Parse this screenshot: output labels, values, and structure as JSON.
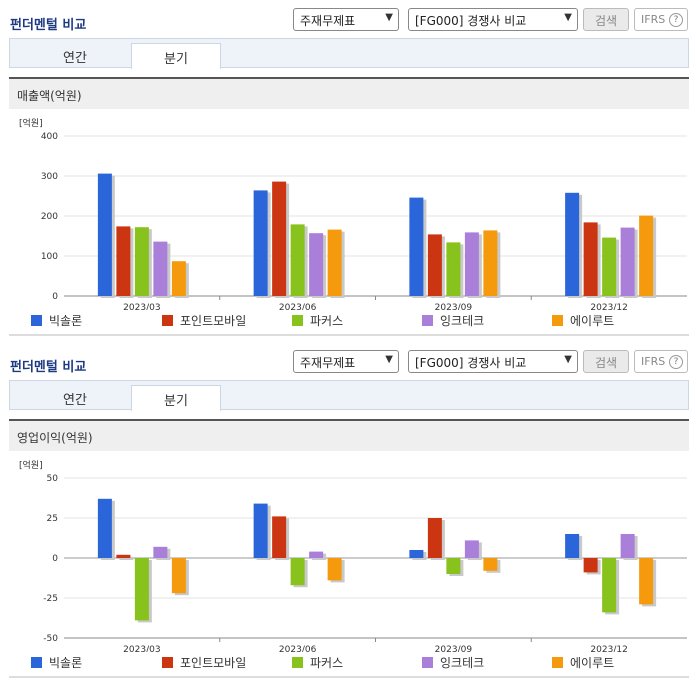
{
  "panels": [
    {
      "header": {
        "title": "펀더멘털 비교",
        "select1": "주재무제표",
        "select2": "[FG000] 경쟁사 비교",
        "search_label": "검색",
        "ifrs_label": "IFRS",
        "help_glyph": "?"
      },
      "tabs": [
        {
          "label": "연간",
          "active": false
        },
        {
          "label": "분기",
          "active": true
        }
      ],
      "section_title": "매출액(억원)",
      "legend": [
        "빅솔론",
        "포인트모바일",
        "파커스",
        "잉크테크",
        "에이루트"
      ]
    },
    {
      "header": {
        "title": "펀더멘털 비교",
        "select1": "주재무제표",
        "select2": "[FG000] 경쟁사 비교",
        "search_label": "검색",
        "ifrs_label": "IFRS",
        "help_glyph": "?"
      },
      "tabs": [
        {
          "label": "연간",
          "active": false
        },
        {
          "label": "분기",
          "active": true
        }
      ],
      "section_title": "영업이익(억원)",
      "legend": [
        "빅솔론",
        "포인트모바일",
        "파커스",
        "잉크테크",
        "에이루트"
      ]
    }
  ],
  "colors": [
    "#2a66d9",
    "#cc3511",
    "#88c21c",
    "#a97fda",
    "#f59a0d"
  ],
  "chart_data": [
    {
      "type": "bar",
      "unit_label": "[억원]",
      "categories": [
        "2023/03",
        "2023/06",
        "2023/09",
        "2023/12"
      ],
      "ylim": [
        0,
        400
      ],
      "yticks": [
        0,
        100,
        200,
        300,
        400
      ],
      "series": [
        {
          "name": "빅솔론",
          "values": [
            306,
            264,
            246,
            258
          ]
        },
        {
          "name": "포인트모바일",
          "values": [
            174,
            286,
            154,
            184
          ]
        },
        {
          "name": "파커스",
          "values": [
            172,
            179,
            134,
            146
          ]
        },
        {
          "name": "잉크테크",
          "values": [
            136,
            157,
            159,
            171
          ]
        },
        {
          "name": "에이루트",
          "values": [
            87,
            166,
            164,
            201
          ]
        }
      ]
    },
    {
      "type": "bar",
      "unit_label": "[억원]",
      "categories": [
        "2023/03",
        "2023/06",
        "2023/09",
        "2023/12"
      ],
      "ylim": [
        -50,
        50
      ],
      "yticks": [
        -50,
        -25,
        0,
        25,
        50
      ],
      "series": [
        {
          "name": "빅솔론",
          "values": [
            37,
            34,
            5,
            15
          ]
        },
        {
          "name": "포인트모바일",
          "values": [
            2,
            26,
            25,
            -9
          ]
        },
        {
          "name": "파커스",
          "values": [
            -39,
            -17,
            -10,
            -34
          ]
        },
        {
          "name": "잉크테크",
          "values": [
            7,
            4,
            11,
            15
          ]
        },
        {
          "name": "에이루트",
          "values": [
            -22,
            -14,
            -8,
            -29
          ]
        }
      ]
    }
  ]
}
